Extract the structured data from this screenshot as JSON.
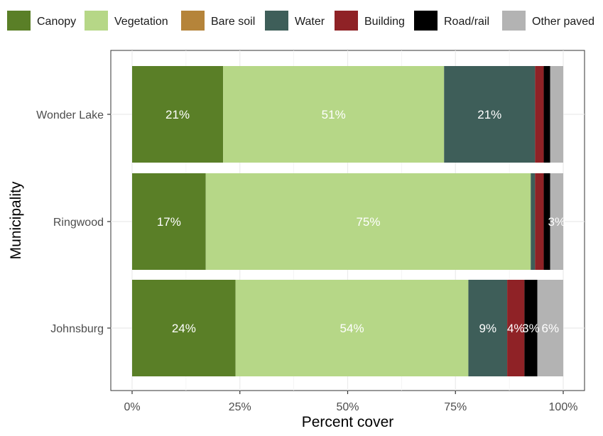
{
  "chart_data": {
    "type": "bar",
    "orientation": "horizontal",
    "stacked": true,
    "title": "",
    "xlabel": "Percent cover",
    "ylabel": "Municipality",
    "xlim": [
      0,
      100
    ],
    "x_ticks": [
      "0%",
      "25%",
      "50%",
      "75%",
      "100%"
    ],
    "categories": [
      "Wonder Lake",
      "Ringwood",
      "Johnsburg"
    ],
    "legend_position": "top",
    "grid": true,
    "series": [
      {
        "name": "Canopy",
        "color": "#5a7f27",
        "values": [
          21,
          17,
          24
        ],
        "labels": [
          "21%",
          "17%",
          "24%"
        ]
      },
      {
        "name": "Vegetation",
        "color": "#b6d787",
        "values": [
          51,
          75,
          54
        ],
        "labels": [
          "51%",
          "75%",
          "54%"
        ]
      },
      {
        "name": "Bare soil",
        "color": "#b5843a",
        "values": [
          0,
          0,
          0
        ],
        "labels": [
          "",
          "",
          ""
        ]
      },
      {
        "name": "Water",
        "color": "#3e5e59",
        "values": [
          21,
          1,
          9
        ],
        "labels": [
          "21%",
          "",
          "9%"
        ]
      },
      {
        "name": "Building",
        "color": "#8f2226",
        "values": [
          2,
          2,
          4
        ],
        "labels": [
          "",
          "",
          "4%"
        ]
      },
      {
        "name": "Road/rail",
        "color": "#000000",
        "values": [
          1.5,
          1.5,
          3
        ],
        "labels": [
          "",
          "",
          "3%"
        ]
      },
      {
        "name": "Other paved",
        "color": "#b3b3b3",
        "values": [
          3,
          3,
          6
        ],
        "labels": [
          "",
          "3%",
          "6%"
        ]
      }
    ]
  }
}
